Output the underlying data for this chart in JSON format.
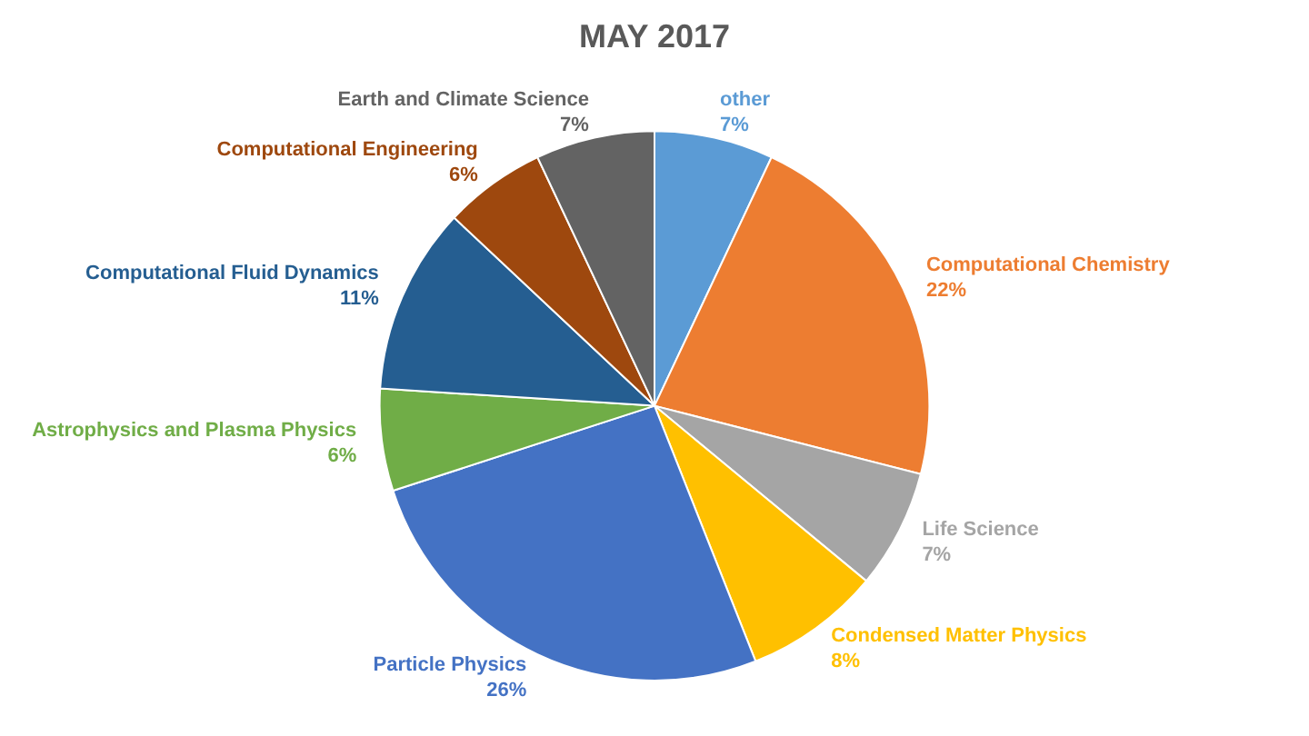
{
  "chart_data": {
    "type": "pie",
    "title": "MAY 2017",
    "categories": [
      "other",
      "Computational Chemistry",
      "Life Science",
      "Condensed Matter Physics",
      "Particle Physics",
      "Astrophysics and Plasma Physics",
      "Computational Fluid Dynamics",
      "Computational Engineering",
      "Earth and Climate Science"
    ],
    "values": [
      7,
      22,
      7,
      8,
      26,
      6,
      11,
      6,
      7
    ],
    "value_labels": [
      "7%",
      "22%",
      "7%",
      "8%",
      "26%",
      "6%",
      "11%",
      "6%",
      "7%"
    ],
    "colors": [
      "#5b9bd5",
      "#ed7d31",
      "#a5a5a5",
      "#ffc000",
      "#4472c4",
      "#70ad47",
      "#255e91",
      "#9e480e",
      "#636363"
    ],
    "legend": false
  }
}
